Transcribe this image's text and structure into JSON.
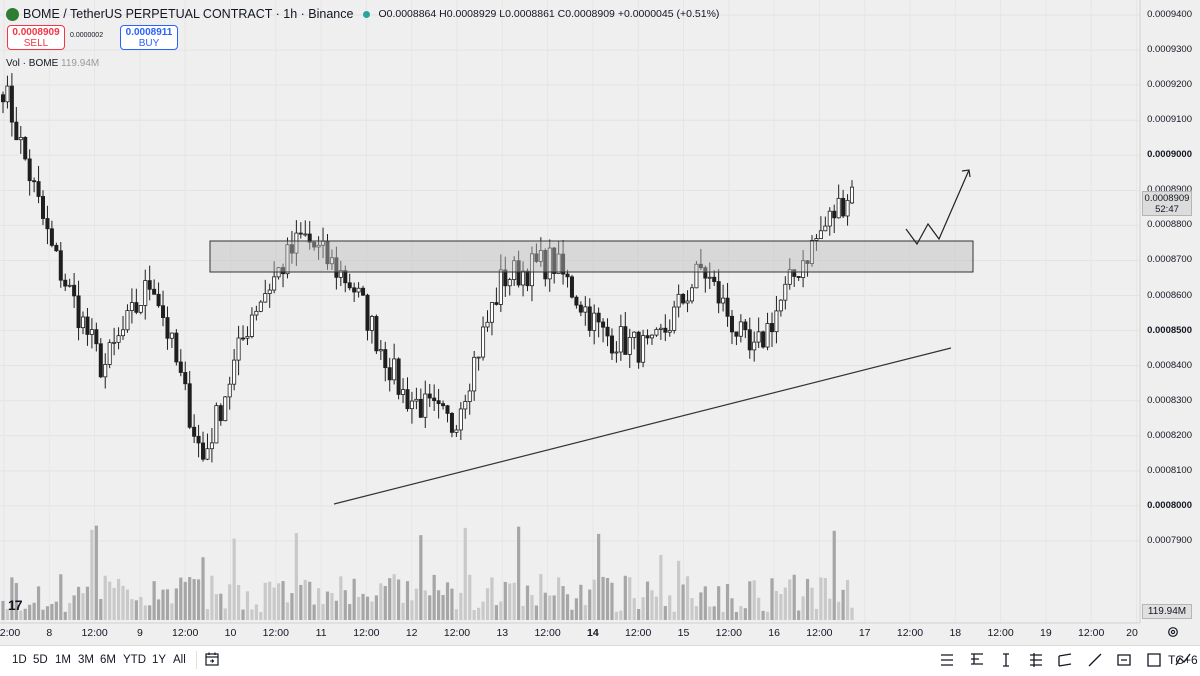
{
  "header": {
    "symbol": "BOME / TetherUS PERPETUAL CONTRACT · 1h · Binance",
    "ohlc": "O0.0008864 H0.0008929 L0.0008861 C0.0008909 +0.0000045 (+0.51%)"
  },
  "trade": {
    "sell_price": "0.0008909",
    "sell_label": "SELL",
    "buy_price": "0.0008911",
    "buy_label": "BUY",
    "spread": "0.0000002"
  },
  "volume": {
    "legend_prefix": "Vol · BOME",
    "legend_value": "119.94M",
    "badge": "119.94M"
  },
  "price_axis": {
    "labels": [
      "0.0009400",
      "0.0009300",
      "0.0009200",
      "0.0009100",
      "0.0009000",
      "0.0008900",
      "0.0008800",
      "0.0008700",
      "0.0008600",
      "0.0008500",
      "0.0008400",
      "0.0008300",
      "0.0008200",
      "0.0008100",
      "0.0008000",
      "0.0007900"
    ],
    "bold_labels": [
      "0.0009000",
      "0.0008500",
      "0.0008000"
    ],
    "current_price": "0.0008909",
    "countdown": "52:47"
  },
  "time_axis": {
    "labels": [
      "2:00",
      "8",
      "12:00",
      "9",
      "12:00",
      "10",
      "12:00",
      "11",
      "12:00",
      "12",
      "12:00",
      "13",
      "12:00",
      "14",
      "12:00",
      "15",
      "12:00",
      "16",
      "12:00",
      "17",
      "12:00",
      "18",
      "12:00",
      "19",
      "12:00",
      "20"
    ],
    "bold_label": "14"
  },
  "bottom_bar": {
    "periods": [
      "1D",
      "5D",
      "1M",
      "3M",
      "6M",
      "YTD",
      "1Y",
      "All"
    ],
    "timezone": "TC+6",
    "tools": [
      "long-position-icon",
      "fib-retracement-icon",
      "text-cursor-icon",
      "fib-channel-icon",
      "parallel-channel-icon",
      "trend-line-icon",
      "price-label-icon",
      "rectangle-icon",
      "path-icon",
      "brush-icon"
    ]
  },
  "chart_data": {
    "type": "candlestick",
    "symbol": "BOME / TetherUS PERPETUAL CONTRACT",
    "interval": "1h",
    "exchange": "Binance",
    "y_range": [
      0.00078,
      0.00094
    ],
    "x_range": [
      "2:00",
      "20"
    ],
    "last": {
      "open": 0.0008864,
      "high": 0.0008929,
      "low": 0.0008861,
      "close": 0.0008909,
      "change": 4.5e-06,
      "change_pct": "+0.51%"
    },
    "resistance_zone": [
      0.0008708,
      0.000879
    ],
    "support_trendline": [
      [
        0.0008091
      ],
      [
        0.0008511
      ]
    ],
    "anchor_path": [
      0.00092,
      0.000872,
      0.000839,
      0.000865,
      0.000813,
      0.000856,
      0.000877,
      0.000863,
      0.000832,
      0.000823,
      0.000865,
      0.00087,
      0.000849,
      0.000844,
      0.000868,
      0.000842,
      0.00087,
      0.0008909
    ],
    "grid": true
  }
}
